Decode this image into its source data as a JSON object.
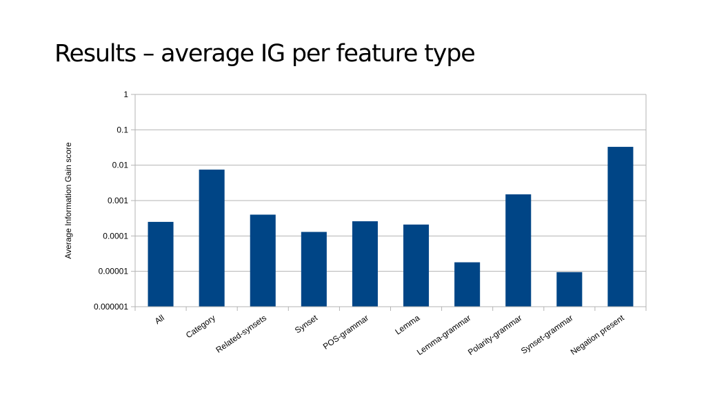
{
  "slide": {
    "title": "Results – average IG per feature type"
  },
  "chart_data": {
    "type": "bar",
    "title": "",
    "xlabel": "",
    "ylabel": "Average Information Gain score",
    "yscale": "log",
    "ylim": [
      1e-06,
      1
    ],
    "yticks": [
      1e-06,
      1e-05,
      0.0001,
      0.001,
      0.01,
      0.1,
      1
    ],
    "ytick_labels": [
      "0.000001",
      "0.00001",
      "0.0001",
      "0.001",
      "0.01",
      "0.1",
      "1"
    ],
    "grid": true,
    "legend": "none",
    "bar_color": "#004586",
    "categories": [
      "All",
      "Category",
      "Related-synsets",
      "Synset",
      "POS-grammar",
      "Lemma",
      "Lemma-grammar",
      "Polarity-grammar",
      "Synset-grammar",
      "Negation present"
    ],
    "values": [
      0.00025,
      0.0075,
      0.0004,
      0.00013,
      0.00026,
      0.00021,
      1.8e-05,
      0.0015,
      9.5e-06,
      0.033
    ]
  }
}
